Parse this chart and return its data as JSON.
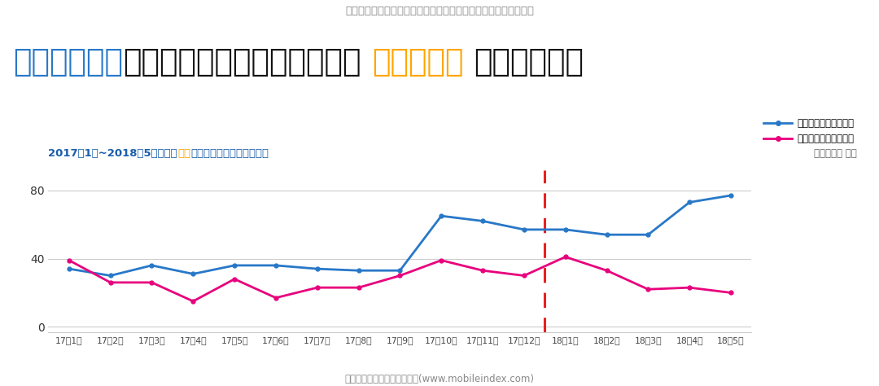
{
  "title_sub": "日本に進出した中国ゲーム、中国に進出うした日本ゲームの現況",
  "subtitle_part1": "2017年1月~2018年5月日本、",
  "subtitle_part2": "中国",
  "subtitle_part3": "モバイルゲームの月別売上",
  "legend1": "中国ゲームの日本売上",
  "legend2": "日本ゲームの中国売上",
  "unit_label": "（単位：億 円）",
  "source": "資料：モバイルインデックス(www.mobileindex.com)",
  "x_labels": [
    "17年1月",
    "17年2月",
    "17年3月",
    "17年4月",
    "17年5月",
    "17年6月",
    "17年7月",
    "17年8月",
    "17年9月",
    "17年10月",
    "17年11月",
    "17年12月",
    "18年1月",
    "18年2月",
    "18年3月",
    "18年4月",
    "18年5月"
  ],
  "blue_data": [
    34,
    30,
    36,
    31,
    36,
    36,
    34,
    33,
    33,
    65,
    62,
    57,
    57,
    54,
    54,
    73,
    77
  ],
  "pink_data": [
    39,
    26,
    26,
    15,
    28,
    17,
    23,
    23,
    30,
    39,
    33,
    30,
    41,
    33,
    22,
    23,
    20
  ],
  "blue_color": "#2878C8",
  "pink_color": "#E8007D",
  "title_blue": "#2878C8",
  "title_orange": "#FFA500",
  "subtitle_blue": "#1A5DAB",
  "subtitle_orange": "#FFA500",
  "title_sub_color": "#888888",
  "bg_color": "#FFFFFF",
  "grid_color": "#CCCCCC",
  "axis_color": "#CCCCCC",
  "yticks": [
    0,
    40,
    80
  ],
  "ylim": [
    -3,
    92
  ],
  "vline_color": "#E82020",
  "source_color": "#888888",
  "title_main_parts": [
    {
      "text": "「日本ゲーム",
      "color": "#2878C8"
    },
    {
      "text": "は月別売上増減を繰り返す、",
      "color": "#111111"
    },
    {
      "text": "中国ゲーム",
      "color": "#FFA500"
    },
    {
      "text": "持続的成長」",
      "color": "#111111"
    }
  ]
}
